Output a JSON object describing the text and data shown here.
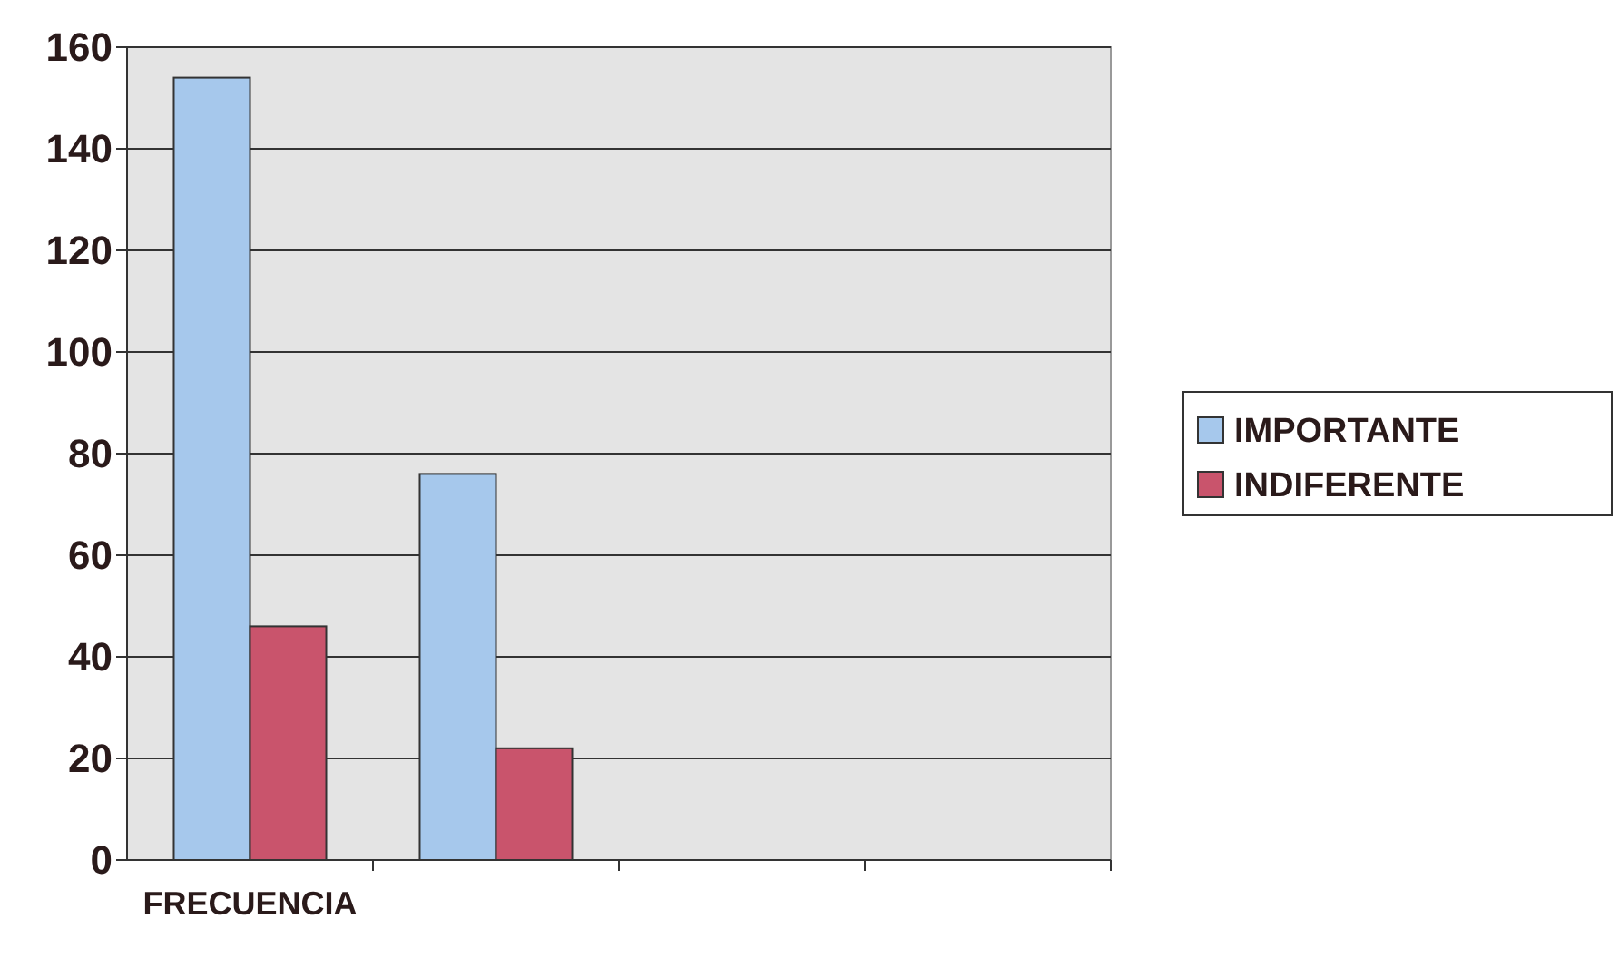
{
  "chart_data": {
    "type": "bar",
    "categories": [
      "FRECUENCIA",
      null,
      null,
      null
    ],
    "series": [
      {
        "name": "IMPORTANTE",
        "color": "#a6c8ec",
        "values": [
          154,
          76,
          null,
          null
        ]
      },
      {
        "name": "INDIFERENTE",
        "color": "#c9546c",
        "values": [
          46,
          22,
          null,
          null
        ]
      }
    ],
    "ylim": [
      0,
      160
    ],
    "yticks": [
      0,
      20,
      40,
      60,
      80,
      100,
      120,
      140,
      160
    ],
    "grid": "y",
    "legend": "right"
  }
}
